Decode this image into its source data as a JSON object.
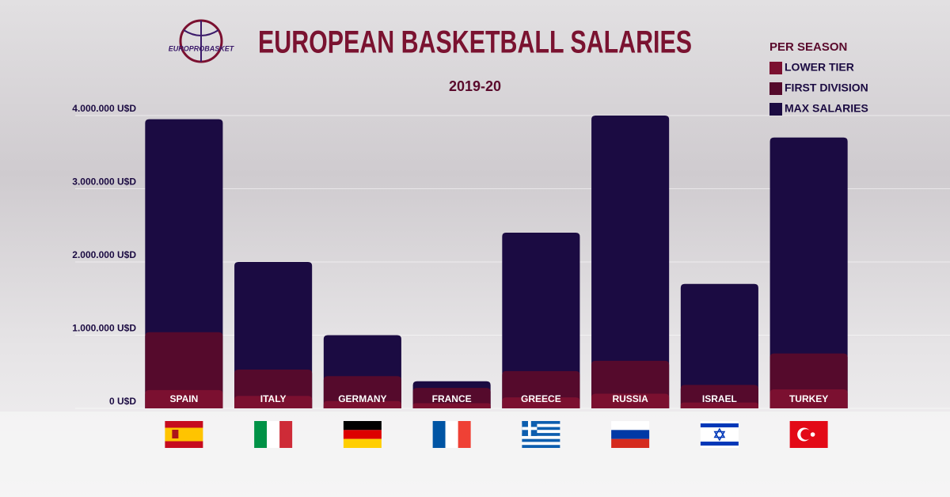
{
  "chart_data": {
    "type": "bar",
    "logo": "EUROPROBASKET",
    "title": "EUROPEAN BASKETBALL SALARIES",
    "subtitle": "2019-20",
    "legend_title": "PER SEASON",
    "legend_position": "upper right",
    "overlap": true,
    "grid": true,
    "categories": [
      "SPAIN",
      "ITALY",
      "GERMANY",
      "FRANCE",
      "GREECE",
      "RUSSIA",
      "ISRAEL",
      "TURKEY"
    ],
    "series": [
      {
        "name": "LOWER TIER",
        "color": "#7b1030",
        "values": [
          250000,
          170000,
          100000,
          70000,
          150000,
          200000,
          80000,
          260000
        ]
      },
      {
        "name": "FIRST DIVISION",
        "color": "#550a2c",
        "values": [
          1040000,
          530000,
          440000,
          280000,
          510000,
          650000,
          320000,
          750000
        ]
      },
      {
        "name": "MAX SALARIES",
        "color": "#1b0b42",
        "values": [
          3950000,
          2000000,
          1000000,
          370000,
          2400000,
          4000000,
          1700000,
          3700000
        ]
      }
    ],
    "ylim": [
      0,
      4000000
    ],
    "yticks": [
      {
        "value": 0,
        "label": "0 U$D"
      },
      {
        "value": 1000000,
        "label": "1.000.000 U$D"
      },
      {
        "value": 2000000,
        "label": "2.000.000 U$D"
      },
      {
        "value": 3000000,
        "label": "3.000.000 U$D"
      },
      {
        "value": 4000000,
        "label": "4.000.000 U$D"
      }
    ]
  }
}
